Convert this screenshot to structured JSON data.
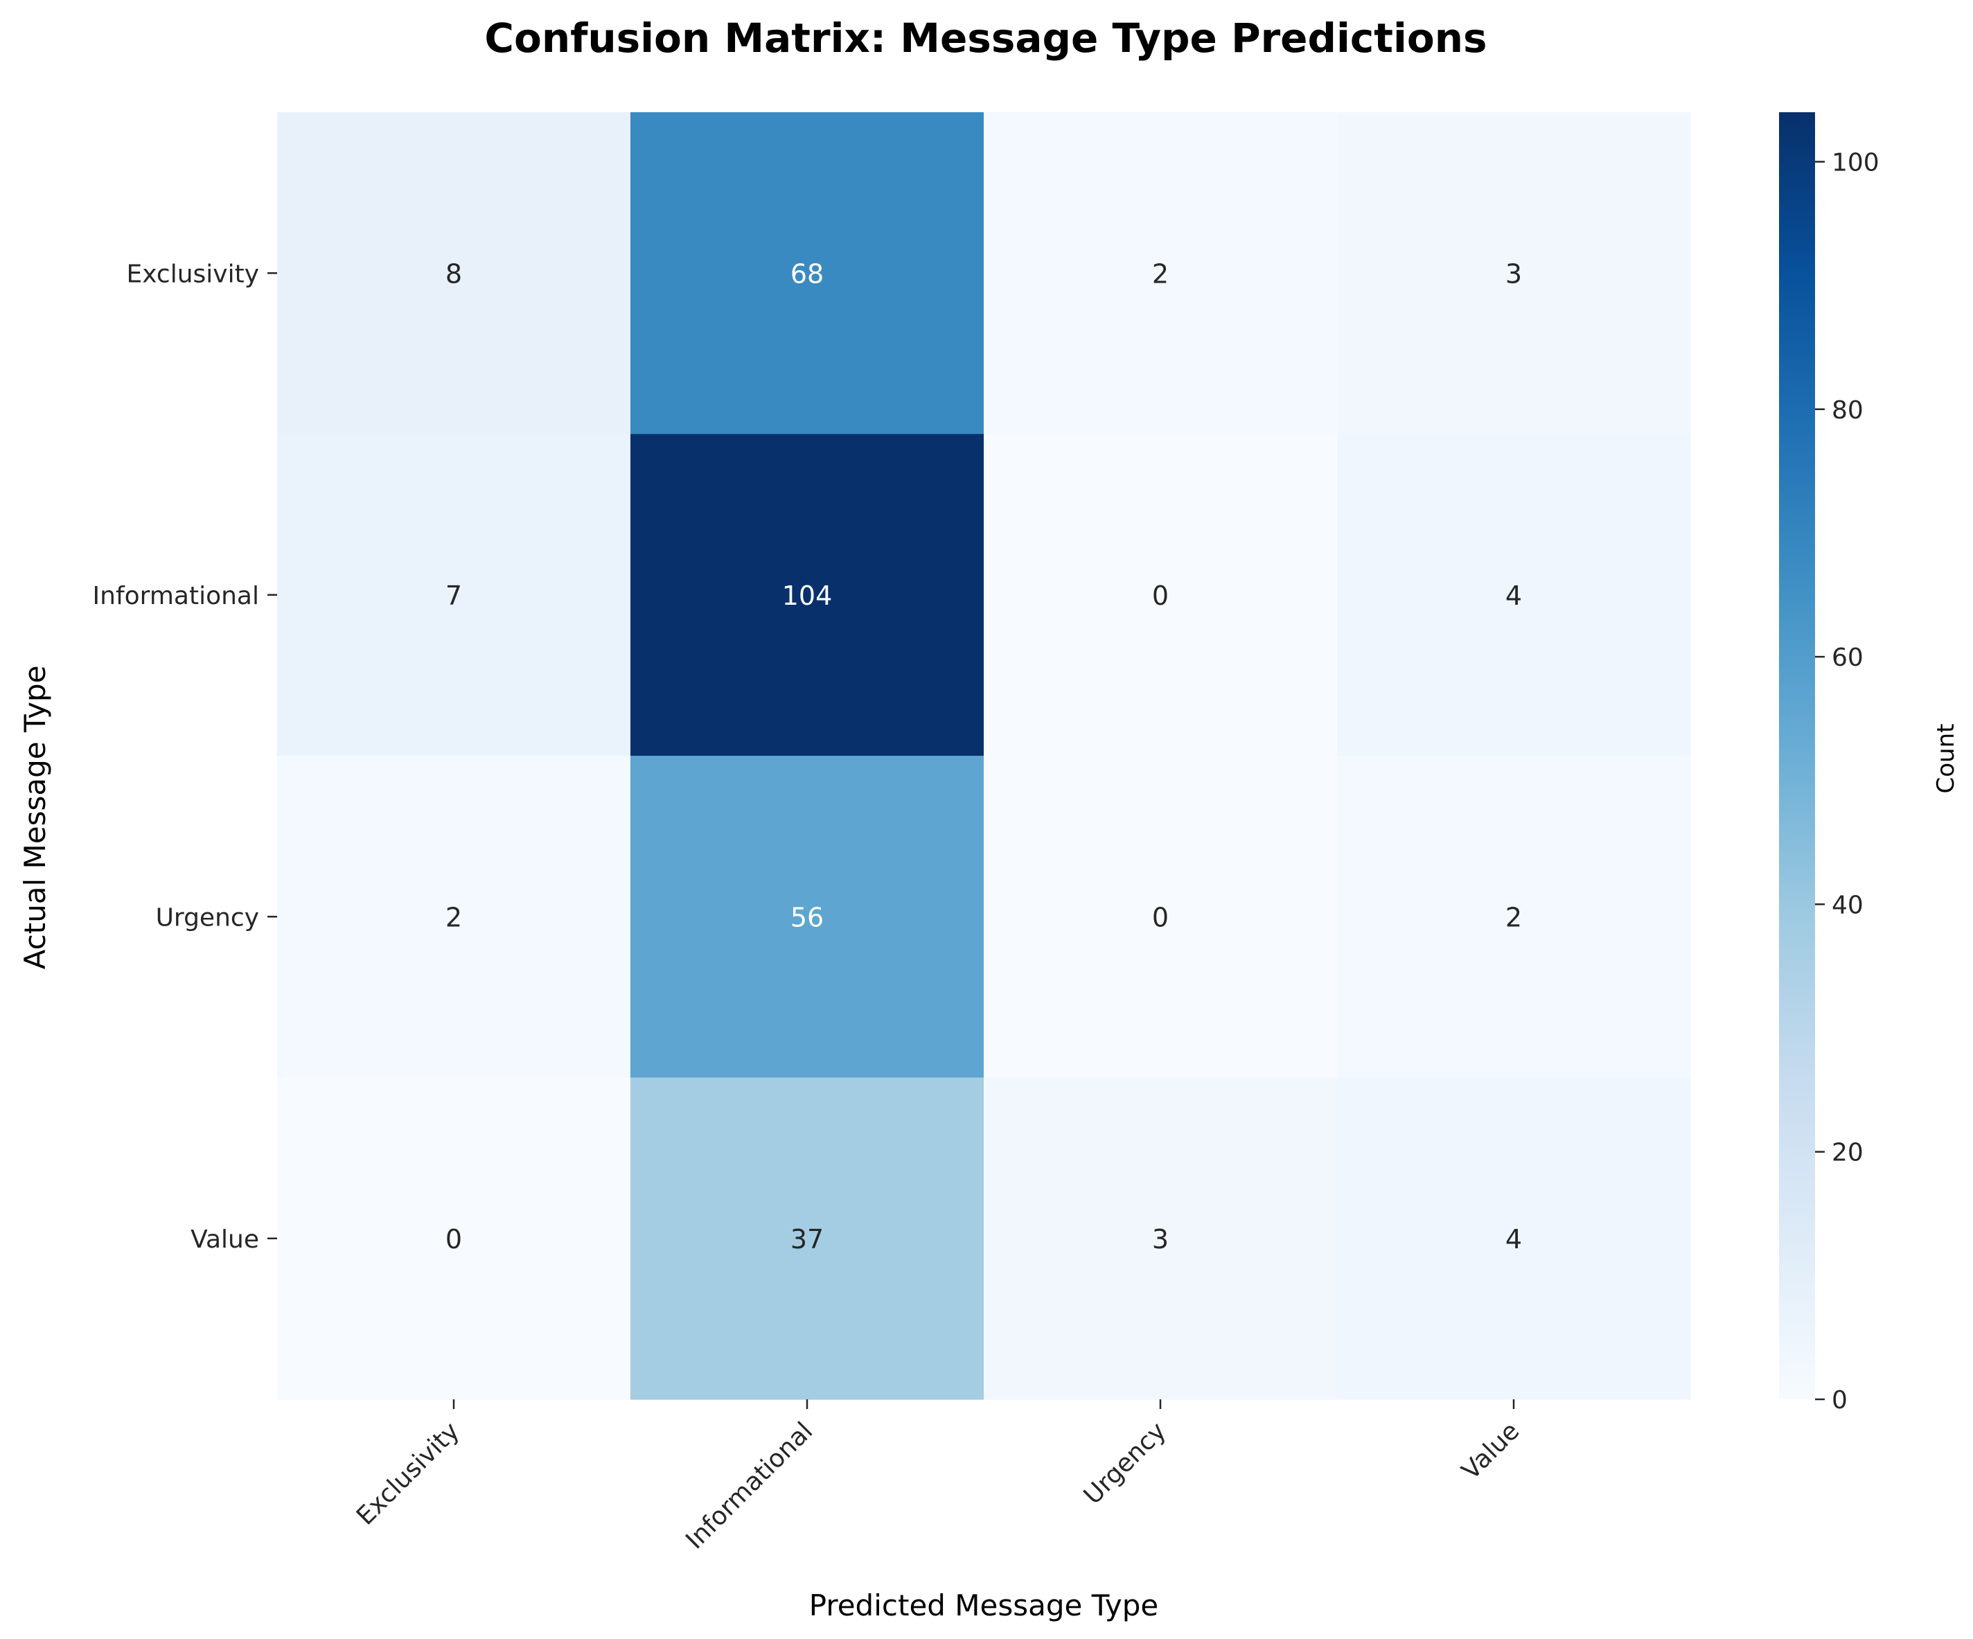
{
  "chart_data": {
    "type": "heatmap",
    "title": "Confusion Matrix: Message Type Predictions",
    "xlabel": "Predicted Message Type",
    "ylabel": "Actual Message Type",
    "x_categories": [
      "Exclusivity",
      "Informational",
      "Urgency",
      "Value"
    ],
    "y_categories": [
      "Exclusivity",
      "Informational",
      "Urgency",
      "Value"
    ],
    "values": [
      [
        8,
        68,
        2,
        3
      ],
      [
        7,
        104,
        0,
        4
      ],
      [
        2,
        56,
        0,
        2
      ],
      [
        0,
        37,
        3,
        4
      ]
    ],
    "colorbar": {
      "label": "Count",
      "range": [
        0,
        104
      ],
      "ticks": [
        0,
        20,
        40,
        60,
        80,
        100
      ]
    },
    "colormap": "Blues",
    "colors": {
      "dark_text": "#262626",
      "light_text": "#ffffff",
      "axis": "#262626"
    }
  }
}
